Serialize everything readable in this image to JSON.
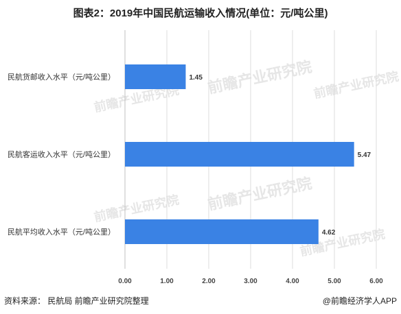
{
  "chart_data": {
    "type": "bar",
    "orientation": "horizontal",
    "title": "图表2：2019年中国民航运输收入情况(单位：元/吨公里)",
    "categories": [
      "民航货邮收入水平（元/吨公里）",
      "民航客运收入水平（元/吨公里）",
      "民航平均收入水平（元/吨公里）"
    ],
    "values": [
      1.45,
      5.47,
      4.62
    ],
    "data_labels": [
      "1.45",
      "5.47",
      "4.62"
    ],
    "xlim": [
      0,
      6
    ],
    "xticks": [
      "0.00",
      "1.00",
      "2.00",
      "3.00",
      "4.00",
      "5.00",
      "6.00"
    ],
    "grid": true,
    "bar_color": "#3a82e4"
  },
  "footer": {
    "source": "资料来源：  民航局 前瞻产业研究院整理",
    "brand": "@前瞻经济学人APP"
  },
  "watermark": {
    "brand": "前瞻产业研究院"
  }
}
